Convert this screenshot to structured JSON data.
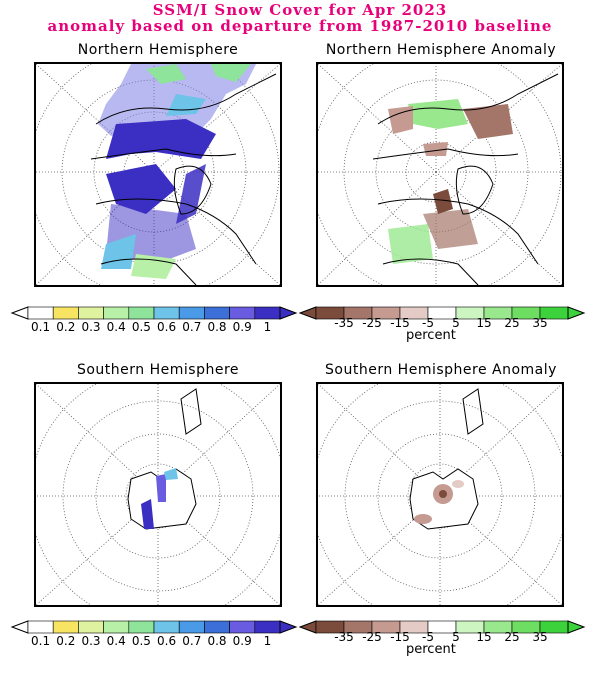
{
  "header": {
    "title_line1": "SSM/I Snow Cover for Apr 2023",
    "title_line2": "anomaly based on departure from 1987-2010 baseline"
  },
  "panels": {
    "nh_cover_title": "Northern Hemisphere",
    "nh_anom_title": "Northern Hemisphere Anomaly",
    "sh_cover_title": "Southern Hemisphere",
    "sh_anom_title": "Southern Hemisphere Anomaly"
  },
  "legend_cover": {
    "labels": [
      "0.1",
      "0.2",
      "0.3",
      "0.4",
      "0.5",
      "0.6",
      "0.7",
      "0.8",
      "0.9",
      "1"
    ],
    "colors": [
      "#ffffff",
      "#f7e463",
      "#dff2a0",
      "#b7f0a6",
      "#8ee49a",
      "#6dc3e8",
      "#4a9ae8",
      "#3c6fd8",
      "#6a5ce0",
      "#3b2ec2"
    ]
  },
  "legend_anom": {
    "labels": [
      "-35",
      "-25",
      "-15",
      "-5",
      "5",
      "15",
      "25",
      "35"
    ],
    "unit": "percent",
    "colors": [
      "#7b4b3c",
      "#a4766a",
      "#c49a91",
      "#e4cbc6",
      "#ffffff",
      "#ccf5c2",
      "#9ae88e",
      "#6ede62",
      "#3cd23c"
    ]
  }
}
